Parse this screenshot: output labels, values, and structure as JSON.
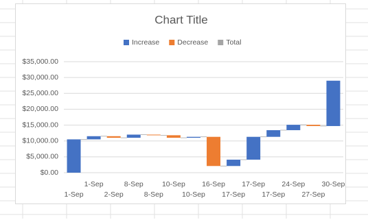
{
  "chart_data": {
    "type": "waterfall",
    "title": "Chart Title",
    "categories": [
      "1-Sep",
      "1-Sep",
      "2-Sep",
      "8-Sep",
      "8-Sep",
      "10-Sep",
      "10-Sep",
      "16-Sep",
      "17-Sep",
      "17-Sep",
      "17-Sep",
      "24-Sep",
      "27-Sep",
      "30-Sep"
    ],
    "values": [
      10500,
      1000,
      -500,
      1000,
      -200,
      -800,
      300,
      -9200,
      2000,
      7200,
      2100,
      1700,
      -400,
      14300
    ],
    "legend": [
      {
        "name": "Increase",
        "color": "#4472c4"
      },
      {
        "name": "Decrease",
        "color": "#ed7d31"
      },
      {
        "name": "Total",
        "color": "#a5a5a5"
      }
    ],
    "ylim": [
      0,
      35000
    ],
    "yticks": [
      {
        "value": 0,
        "label": "$0.00"
      },
      {
        "value": 5000,
        "label": "$5,000.00"
      },
      {
        "value": 10000,
        "label": "$10,000.00"
      },
      {
        "value": 15000,
        "label": "$15,000.00"
      },
      {
        "value": 20000,
        "label": "$20,000.00"
      },
      {
        "value": 25000,
        "label": "$25,000.00"
      },
      {
        "value": 30000,
        "label": "$30,000.00"
      },
      {
        "value": 35000,
        "label": "$35,000.00"
      }
    ],
    "grid": true
  }
}
